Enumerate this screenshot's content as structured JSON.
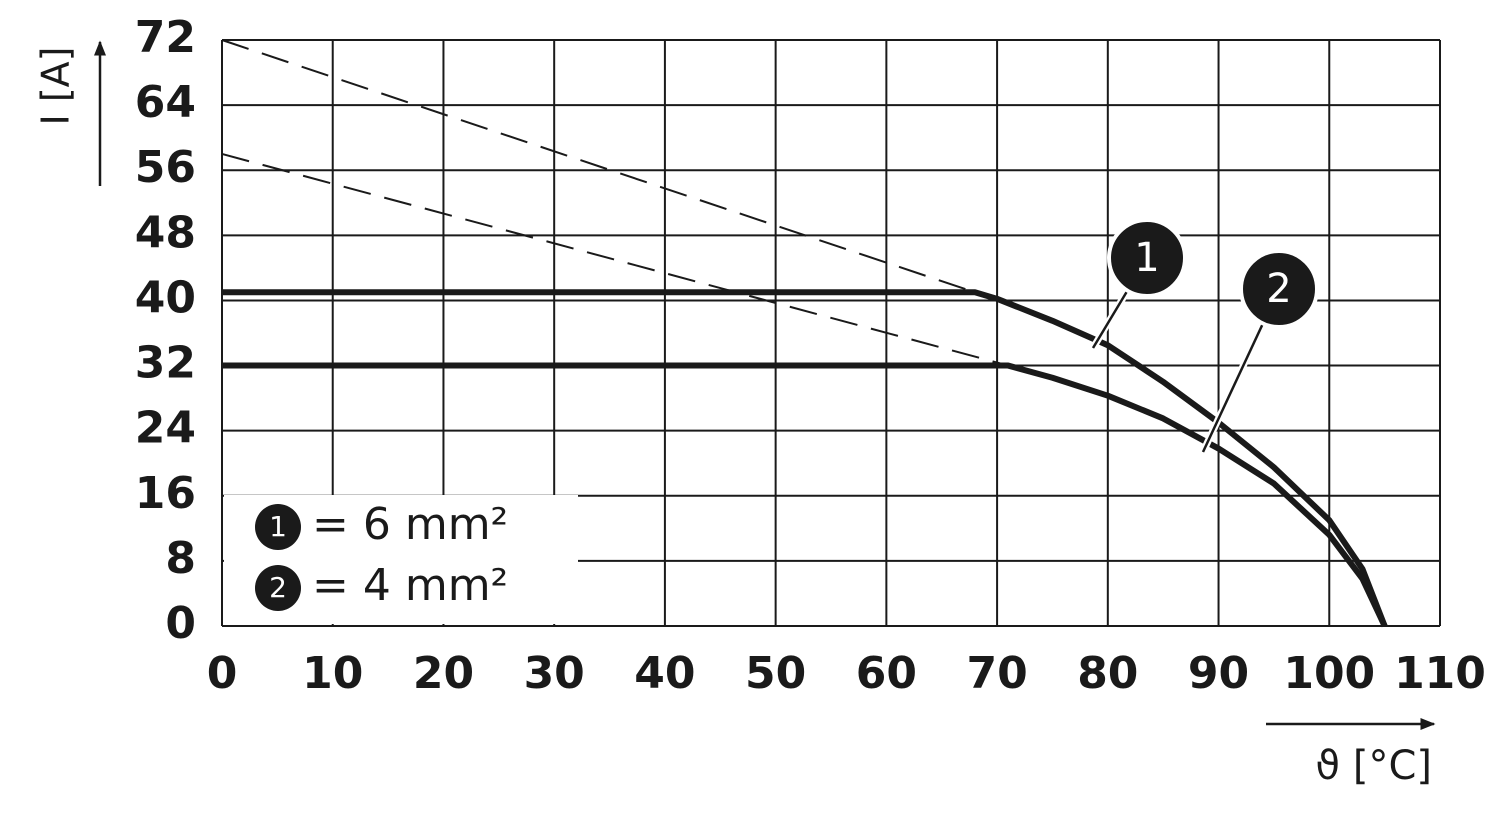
{
  "chart_data": {
    "type": "line",
    "x_label": "ϑ [°C]",
    "y_label": "I [A]",
    "xlim": [
      0,
      110
    ],
    "ylim": [
      0,
      72
    ],
    "xticks": [
      0,
      10,
      20,
      30,
      40,
      50,
      60,
      70,
      80,
      90,
      100,
      110
    ],
    "yticks": [
      0,
      8,
      16,
      24,
      32,
      40,
      48,
      56,
      64,
      72
    ],
    "grid": true,
    "legend": "lower left",
    "series": [
      {
        "name": "1",
        "label": "= 6 mm²",
        "color": "#1a1a1a",
        "style": "solid",
        "x": [
          0,
          68,
          70,
          75,
          80,
          85,
          90,
          95,
          100,
          103,
          105
        ],
        "values": [
          41,
          41,
          40.2,
          37.5,
          34.5,
          30,
          25,
          19.5,
          13,
          7,
          0
        ]
      },
      {
        "name": "2",
        "label": "= 4 mm²",
        "color": "#1a1a1a",
        "style": "solid",
        "x": [
          0,
          71,
          75,
          80,
          85,
          90,
          95,
          100,
          103,
          105
        ],
        "values": [
          32,
          32,
          30.5,
          28.3,
          25.5,
          21.8,
          17.5,
          11.2,
          5.8,
          0
        ]
      },
      {
        "color": "#1a1a1a",
        "style": "dashed",
        "x": [
          0,
          68
        ],
        "values": [
          72,
          41
        ]
      },
      {
        "color": "#1a1a1a",
        "style": "dashed",
        "x": [
          0,
          71
        ],
        "values": [
          58,
          32
        ]
      }
    ]
  }
}
